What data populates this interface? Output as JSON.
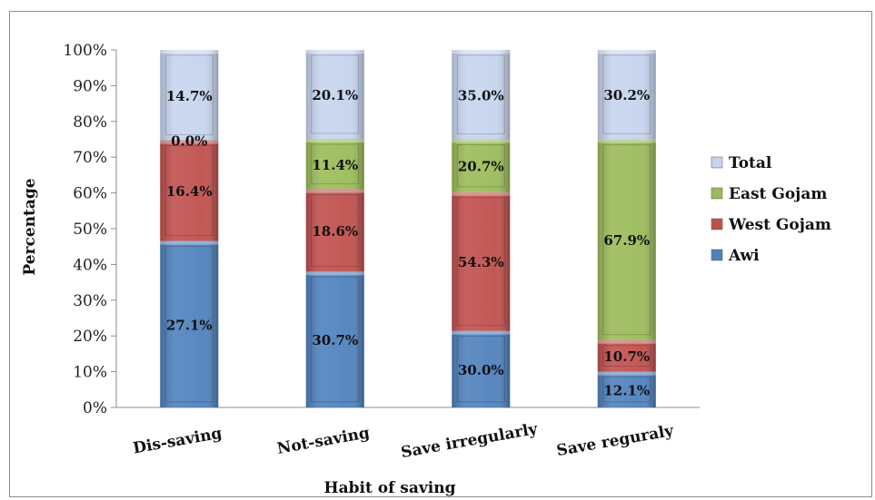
{
  "chart_data": {
    "type": "bar",
    "stacked": true,
    "percent_stacked": true,
    "xlabel": "Habit of saving",
    "ylabel": "Percentage",
    "ylim": [
      0,
      100
    ],
    "yticks": [
      "0%",
      "10%",
      "20%",
      "30%",
      "40%",
      "50%",
      "60%",
      "70%",
      "80%",
      "90%",
      "100%"
    ],
    "categories": [
      "Dis-saving",
      "Not-saving",
      "Save irregularly",
      "Save reguraly"
    ],
    "series": [
      {
        "name": "Awi",
        "values": [
          27.1,
          30.7,
          30.0,
          12.1
        ],
        "labels": [
          "27.1%",
          "30.7%",
          "30.0%",
          "12.1%"
        ],
        "color": "#4f81bd"
      },
      {
        "name": "West Gojam",
        "values": [
          16.4,
          18.6,
          54.3,
          10.7
        ],
        "labels": [
          "16.4%",
          "18.6%",
          "54.3%",
          "10.7%"
        ],
        "color": "#c0504d"
      },
      {
        "name": "East Gojam",
        "values": [
          0.0,
          11.4,
          20.7,
          67.9
        ],
        "labels": [
          "0.0%",
          "11.4%",
          "20.7%",
          "67.9%"
        ],
        "color": "#9bbb59"
      },
      {
        "name": "Total",
        "values": [
          14.7,
          20.1,
          35.0,
          30.2
        ],
        "labels": [
          "14.7%",
          "20.1%",
          "35.0%",
          "30.2%"
        ],
        "color": "#c6d4ee"
      }
    ],
    "legend_position": "right",
    "legend_order": [
      "Total",
      "East Gojam",
      "West Gojam",
      "Awi"
    ],
    "grid": false
  }
}
